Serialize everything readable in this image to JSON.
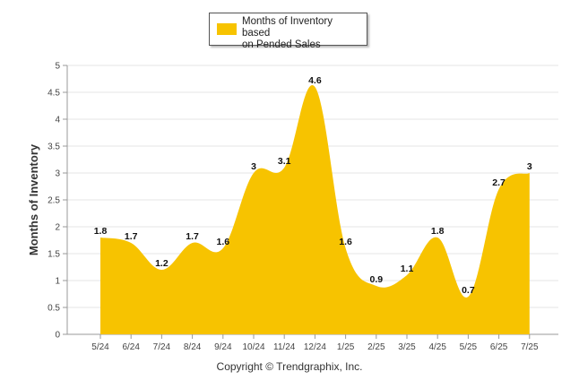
{
  "chart_data": {
    "type": "area",
    "ylabel": "Months of Inventory",
    "xlabel": "",
    "ylim": [
      0,
      5
    ],
    "yticks": [
      "0",
      "0.5",
      "1",
      "1.5",
      "2",
      "2.5",
      "3",
      "3.5",
      "4",
      "4.5",
      "5"
    ],
    "categories": [
      "5/24",
      "6/24",
      "7/24",
      "8/24",
      "9/24",
      "10/24",
      "11/24",
      "12/24",
      "1/25",
      "2/25",
      "3/25",
      "4/25",
      "5/25",
      "6/25",
      "7/25"
    ],
    "series": [
      {
        "name": "Months of Inventory based on Pended Sales",
        "values": [
          1.8,
          1.7,
          1.2,
          1.7,
          1.6,
          3,
          3.1,
          4.6,
          1.6,
          0.9,
          1.1,
          1.8,
          0.7,
          2.7,
          3
        ],
        "labels": [
          "1.8",
          "1.7",
          "1.2",
          "1.7",
          "1.6",
          "3",
          "3.1",
          "4.6",
          "1.6",
          "0.9",
          "1.1",
          "1.8",
          "0.7",
          "2.7",
          "3"
        ]
      }
    ],
    "legend_position": "top-center",
    "grid": true,
    "colors": {
      "fill": "#f7c300",
      "grid": "#e6e6e6",
      "axis": "#999999"
    }
  },
  "legend": {
    "label_line1": "Months of Inventory based",
    "label_line2": "on Pended Sales"
  },
  "footer": {
    "text": "Copyright © Trendgraphix, Inc."
  }
}
